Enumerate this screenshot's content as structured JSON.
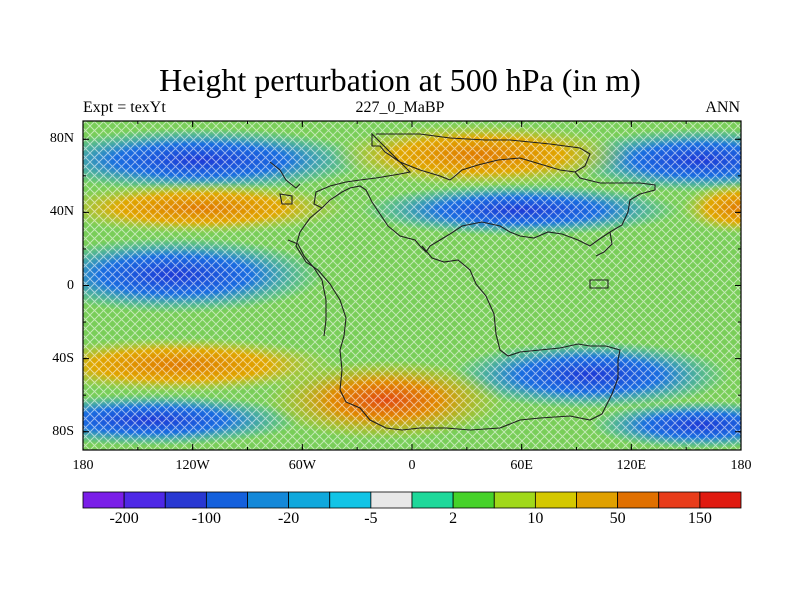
{
  "title": "Height perturbation at 500 hPa (in m)",
  "subtitle_left": "Expt = texYt",
  "subtitle_center": "227_0_MaBP",
  "subtitle_right": "ANN",
  "lat_labels": [
    "80N",
    "40N",
    "0",
    "40S",
    "80S"
  ],
  "lon_labels": [
    "180",
    "120W",
    "60W",
    "0",
    "60E",
    "120E",
    "180"
  ],
  "colorbar": {
    "colors": [
      "#7a1ee8",
      "#4e28e6",
      "#2838d2",
      "#1460dc",
      "#1488d8",
      "#10a8dc",
      "#12c4e6",
      "#e8e8e8",
      "#1ed89a",
      "#46d22a",
      "#a0d81a",
      "#d4c800",
      "#e0a000",
      "#e07000",
      "#e83c1a",
      "#e01a10"
    ],
    "labels": [
      "-200",
      "-100",
      "-20",
      "-5",
      "2",
      "10",
      "50",
      "150"
    ]
  },
  "map_data": {
    "field": "500 hPa height perturbation",
    "units": "m",
    "features": [
      {
        "name": "positive anomaly",
        "lon": 15,
        "lat": 70
      },
      {
        "name": "negative anomaly",
        "lon": -140,
        "lat": 70
      },
      {
        "name": "negative anomaly",
        "lon": 160,
        "lat": 70
      },
      {
        "name": "positive anomaly",
        "lon": -110,
        "lat": 40
      },
      {
        "name": "negative anomaly",
        "lon": 60,
        "lat": 38
      },
      {
        "name": "negative anomaly",
        "lon": -120,
        "lat": 5
      },
      {
        "name": "positive anomaly",
        "lon": -130,
        "lat": -35
      },
      {
        "name": "negative anomaly",
        "lon": 95,
        "lat": -45
      },
      {
        "name": "negative anomaly",
        "lon": -150,
        "lat": -65
      },
      {
        "name": "positive anomaly",
        "lon": -10,
        "lat": -65
      }
    ]
  }
}
